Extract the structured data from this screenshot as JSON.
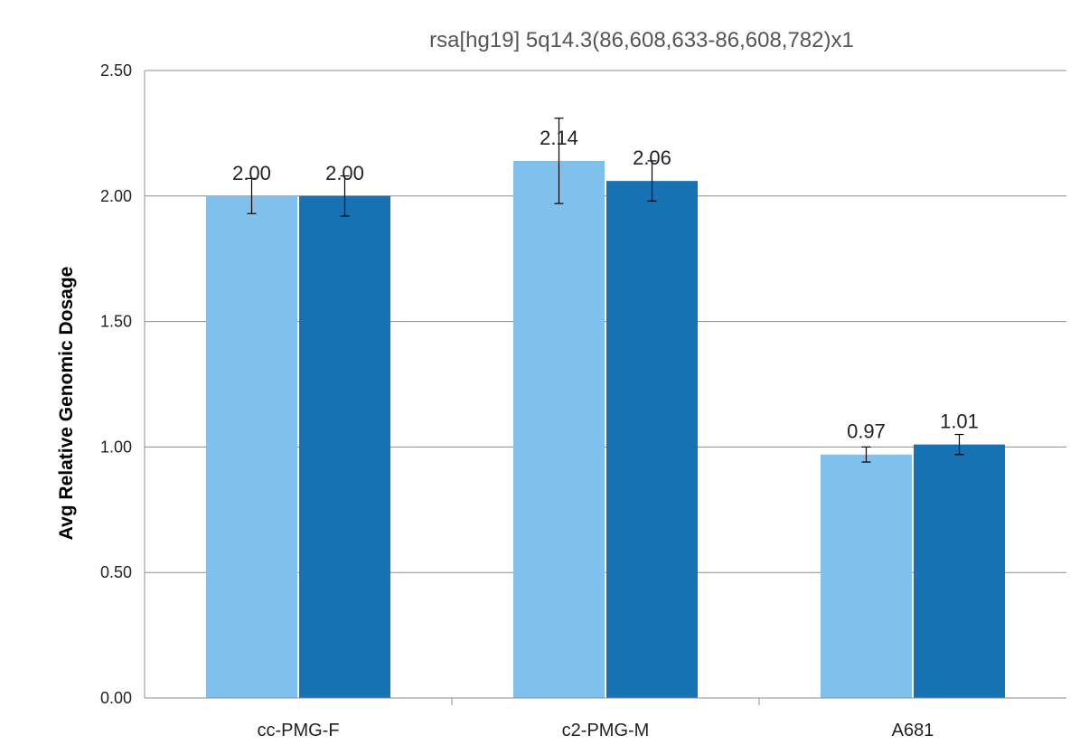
{
  "chart_data": {
    "type": "bar",
    "title": "rsa[hg19] 5q14.3(86,608,633-86,608,782)x1",
    "xlabel": "",
    "ylabel": "Avg Relative Genomic Dosage",
    "ylim": [
      0,
      2.5
    ],
    "yticks": [
      "0.00",
      "0.50",
      "1.00",
      "1.50",
      "2.00",
      "2.50"
    ],
    "categories": [
      "cc-PMG-F",
      "c2-PMG-M",
      "A681"
    ],
    "grid": true,
    "legend": "none",
    "series": [
      {
        "color": "#7fc0ec",
        "values": [
          2.0,
          2.14,
          0.97
        ],
        "labels": [
          "2.00",
          "2.14",
          "0.97"
        ],
        "errors": [
          0.07,
          0.17,
          0.03
        ]
      },
      {
        "color": "#1672b3",
        "values": [
          2.0,
          2.06,
          1.01
        ],
        "labels": [
          "2.00",
          "2.06",
          "1.01"
        ],
        "errors": [
          0.08,
          0.08,
          0.04
        ]
      }
    ]
  }
}
